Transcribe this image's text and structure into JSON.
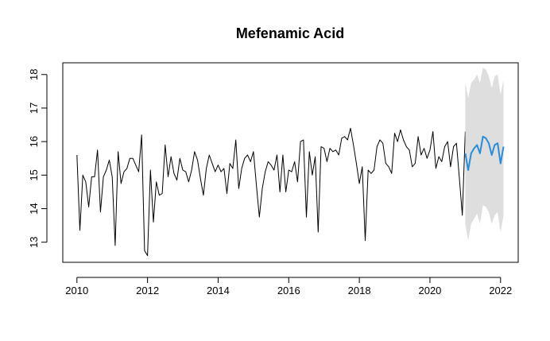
{
  "chart_data": {
    "type": "line",
    "title": "Mefenamic Acid",
    "xlabel": "",
    "ylabel": "",
    "xlim": [
      2009.6,
      2022.5
    ],
    "ylim": [
      12.4,
      18.35
    ],
    "x_ticks": [
      2010,
      2012,
      2014,
      2016,
      2018,
      2020,
      2022
    ],
    "x_tick_labels": [
      "2010",
      "2012",
      "2014",
      "2016",
      "2018",
      "2020",
      "2022"
    ],
    "y_ticks": [
      13,
      14,
      15,
      16,
      17,
      18
    ],
    "y_tick_labels": [
      "13",
      "14",
      "15",
      "16",
      "17",
      "18"
    ],
    "grid": false,
    "legend": "none",
    "series": [
      {
        "start": 2010.0,
        "step": 0.0833333,
        "color": "#000000",
        "values": [
          15.6,
          13.35,
          15.0,
          14.8,
          14.05,
          14.95,
          14.95,
          15.75,
          13.9,
          14.95,
          15.15,
          15.45,
          14.95,
          12.9,
          15.7,
          14.75,
          15.1,
          15.2,
          15.5,
          15.5,
          15.3,
          15.1,
          16.2,
          12.75,
          12.6,
          15.15,
          13.6,
          14.8,
          14.4,
          14.45,
          15.9,
          14.95,
          15.55,
          15.05,
          14.85,
          15.5,
          15.15,
          15.1,
          14.8,
          15.15,
          15.7,
          15.45,
          14.9,
          14.4,
          15.2,
          15.6,
          15.35,
          15.1,
          15.3,
          15.1,
          15.2,
          14.45,
          15.35,
          15.2,
          16.05,
          14.6,
          15.2,
          15.5,
          15.6,
          15.4,
          15.7,
          14.7,
          13.75,
          14.6,
          15.1,
          15.4,
          15.3,
          15.15,
          15.6,
          14.5,
          15.6,
          14.5,
          15.15,
          15.1,
          15.4,
          14.8,
          16.0,
          16.05,
          13.75,
          15.7,
          15.0,
          15.55,
          13.3,
          15.85,
          15.8,
          15.4,
          15.8,
          15.7,
          15.75,
          15.6,
          16.1,
          16.15,
          16.05,
          16.4,
          15.9,
          15.35,
          14.75,
          15.25,
          13.05,
          15.15,
          15.05,
          15.15,
          15.85,
          16.05,
          15.95,
          15.35,
          15.25,
          15.05,
          16.25,
          16.0,
          16.35,
          16.05,
          15.85,
          15.75,
          15.25,
          15.35,
          16.15,
          15.6,
          15.8,
          15.5,
          15.75,
          16.3,
          15.2,
          15.55,
          15.4,
          15.85,
          16.0,
          15.25,
          15.85,
          15.95,
          14.9,
          13.8,
          16.3
        ]
      },
      {
        "start": 2021.0,
        "step": 0.0833333,
        "color": "#2b8cd6",
        "values": [
          15.65,
          15.15,
          15.65,
          15.8,
          15.9,
          15.65,
          16.15,
          16.1,
          15.95,
          15.6,
          15.9,
          15.95,
          15.35,
          15.85
        ],
        "upper": [
          17.75,
          17.3,
          17.75,
          17.85,
          18.0,
          17.75,
          18.2,
          18.15,
          17.95,
          17.6,
          17.95,
          18.0,
          17.4,
          17.85
        ],
        "lower": [
          13.55,
          13.05,
          13.55,
          13.7,
          13.85,
          13.55,
          14.1,
          14.05,
          13.9,
          13.55,
          13.8,
          13.9,
          13.3,
          13.8
        ],
        "interval_color": "#dedede"
      }
    ]
  }
}
